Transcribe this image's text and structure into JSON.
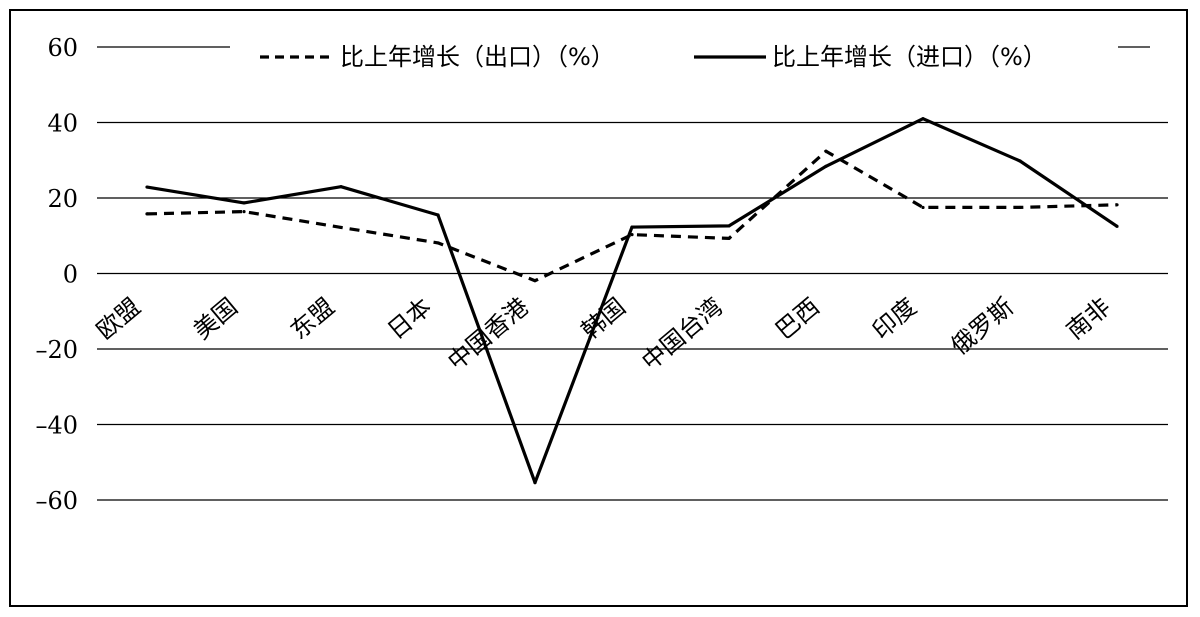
{
  "chart_data": {
    "type": "line",
    "categories": [
      "欧盟",
      "美国",
      "东盟",
      "日本",
      "中国香港",
      "韩国",
      "中国台湾",
      "巴西",
      "印度",
      "俄罗斯",
      "南非"
    ],
    "series": [
      {
        "name": "比上年增长（出口）（%）",
        "style": "dashed",
        "color": "#000000",
        "values": [
          15.8,
          16.4,
          12.2,
          8.1,
          -1.9,
          10.3,
          9.3,
          32.4,
          17.5,
          17.5,
          18.2
        ]
      },
      {
        "name": "比上年增长（进口）（%）",
        "style": "solid",
        "color": "#000000",
        "values": [
          22.9,
          18.7,
          23.0,
          15.5,
          -55.4,
          12.3,
          12.6,
          28.4,
          41.0,
          29.8,
          12.5
        ]
      }
    ],
    "y_ticks": [
      "60",
      "40",
      "20",
      "0",
      "–20",
      "–40",
      "–60"
    ],
    "ylim": [
      -60,
      60
    ],
    "grid": true,
    "legend_position": "top"
  }
}
